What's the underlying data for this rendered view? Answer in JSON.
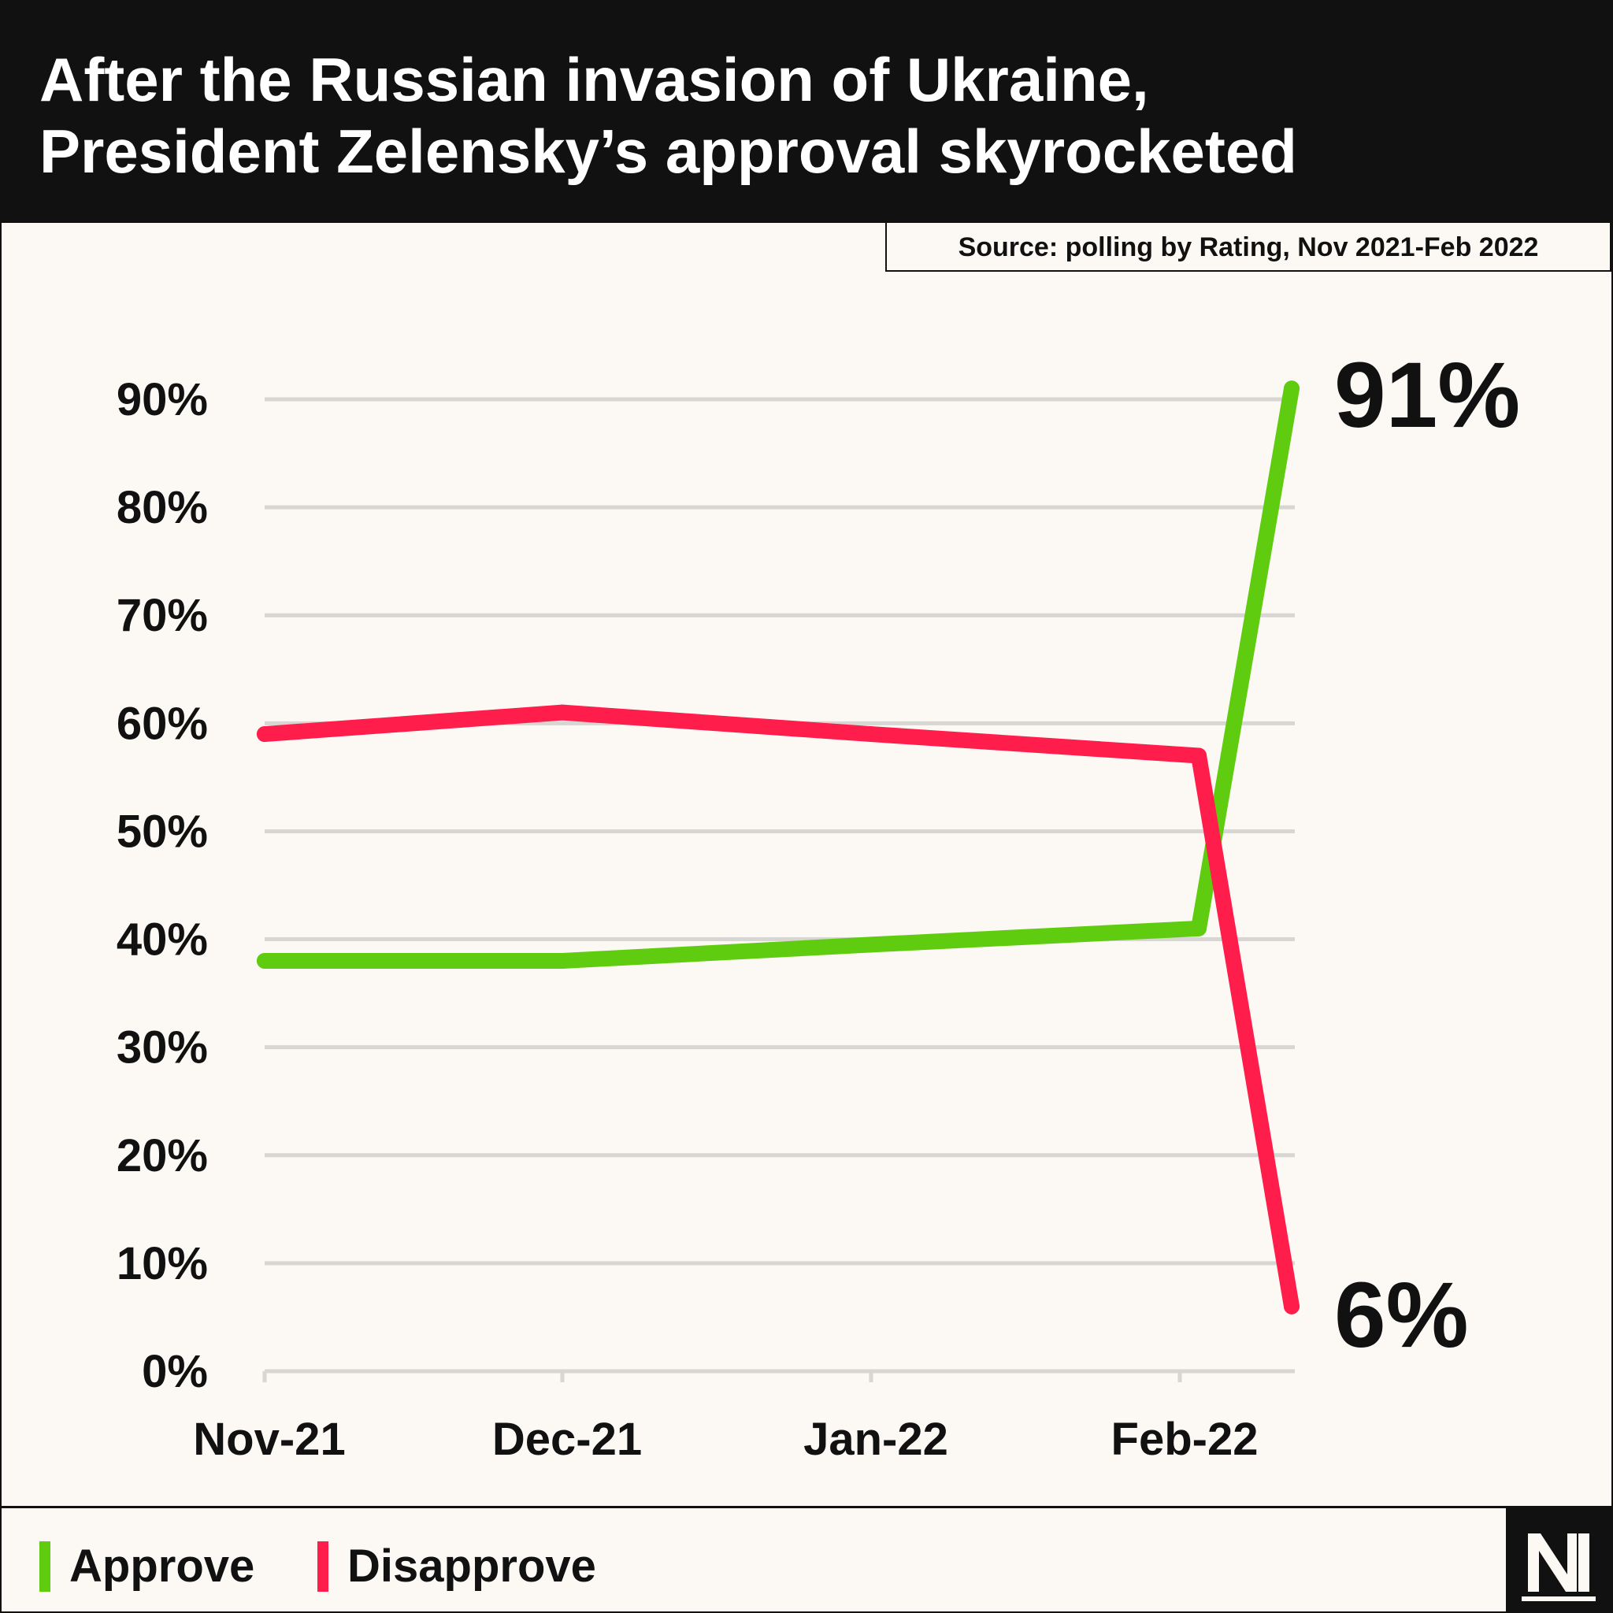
{
  "title_lines": [
    "After the Russian invasion of Ukraine,",
    "President Zelensky’s approval skyrocketed"
  ],
  "source": "Source: polling by Rating, Nov 2021-Feb 2022",
  "chart_data": {
    "type": "line",
    "title": "After the Russian invasion of Ukraine, President Zelensky’s approval skyrocketed",
    "x_ticks": [
      "Nov-21",
      "Dec-21",
      "Jan-22",
      "Feb-22"
    ],
    "y_ticks": [
      "0%",
      "10%",
      "20%",
      "30%",
      "40%",
      "50%",
      "60%",
      "70%",
      "80%",
      "90%"
    ],
    "ylim": [
      0,
      90
    ],
    "grid": true,
    "legend_position": "bottom-left",
    "series": [
      {
        "name": "Approve",
        "color": "#5fcc10",
        "points": [
          {
            "x": "Nov-21",
            "y": 38
          },
          {
            "x": "Dec-21",
            "y": 38
          },
          {
            "x": "Jan-22",
            "y": 39.5
          },
          {
            "x": "Feb-22",
            "y": 41
          },
          {
            "x": "Feb-22 (after invasion)",
            "y": 91
          }
        ],
        "end_label": "91%"
      },
      {
        "name": "Disapprove",
        "color": "#ff1d4c",
        "points": [
          {
            "x": "Nov-21",
            "y": 59
          },
          {
            "x": "Dec-21",
            "y": 61
          },
          {
            "x": "Jan-22",
            "y": 59
          },
          {
            "x": "Feb-22",
            "y": 57
          },
          {
            "x": "Feb-22 (after invasion)",
            "y": 6
          }
        ],
        "end_label": "6%"
      }
    ]
  },
  "legend": [
    {
      "label": "Approve",
      "color": "#5fcc10"
    },
    {
      "label": "Disapprove",
      "color": "#ff1d4c"
    }
  ],
  "logo": "NM logo"
}
